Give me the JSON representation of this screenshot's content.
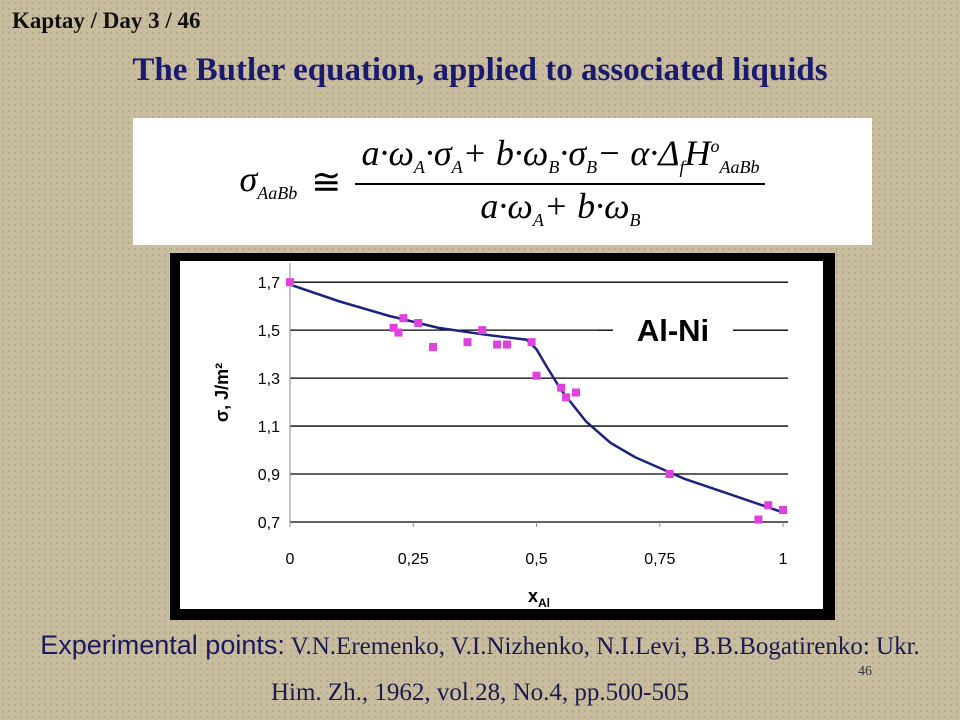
{
  "header": "Kaptay / Day 3 / 46",
  "title": "The Butler equation, applied to associated liquids",
  "formula": {
    "lhs": [
      {
        "text": "σ",
        "pos": "base"
      },
      {
        "text": "AaBb",
        "pos": "sub"
      }
    ],
    "relation": "≅",
    "numerator": [
      {
        "text": "a·ω",
        "pos": "base"
      },
      {
        "text": "A",
        "pos": "sub"
      },
      {
        "text": "·σ",
        "pos": "base"
      },
      {
        "text": "A",
        "pos": "sub"
      },
      {
        "text": "+ b·ω",
        "pos": "base"
      },
      {
        "text": "B",
        "pos": "sub"
      },
      {
        "text": "·σ",
        "pos": "base"
      },
      {
        "text": "B",
        "pos": "sub"
      },
      {
        "text": "− α·Δ",
        "pos": "base"
      },
      {
        "text": "f",
        "pos": "sub"
      },
      {
        "text": "H",
        "pos": "base"
      },
      {
        "text": "o",
        "pos": "sup"
      },
      {
        "text": "AaBb",
        "pos": "sub"
      }
    ],
    "denominator": [
      {
        "text": "a·ω",
        "pos": "base"
      },
      {
        "text": "A",
        "pos": "sub"
      },
      {
        "text": "+ b·ω",
        "pos": "base"
      },
      {
        "text": "B",
        "pos": "sub"
      }
    ]
  },
  "chart_data": {
    "type": "scatter",
    "ylabel": "σ, J/m²",
    "xlabel": "x",
    "xlabel_sub": "Al",
    "xlim": [
      0,
      1.01
    ],
    "ylim": [
      0.7,
      1.78
    ],
    "xticks": [
      0,
      {
        "value": 0.25,
        "label": "0,25"
      },
      {
        "value": 0.5,
        "label": "0,5"
      },
      {
        "value": 0.75,
        "label": "0,75"
      },
      1
    ],
    "yticks": [
      {
        "value": 0.7,
        "label": "0,7"
      },
      {
        "value": 0.9,
        "label": "0,9"
      },
      {
        "value": 1.1,
        "label": "1,1"
      },
      {
        "value": 1.3,
        "label": "1,3"
      },
      {
        "value": 1.5,
        "label": "1,5"
      },
      {
        "value": 1.7,
        "label": "1,7"
      }
    ],
    "grid": true,
    "legend": "top-right",
    "series": [
      {
        "name": "Al-Ni",
        "color": "#1a237e",
        "mode": "line",
        "x": [
          0,
          0.1,
          0.2,
          0.3,
          0.4,
          0.48,
          0.5,
          0.52,
          0.55,
          0.6,
          0.65,
          0.7,
          0.8,
          0.9,
          1.0
        ],
        "values": [
          1.69,
          1.62,
          1.56,
          1.51,
          1.48,
          1.46,
          1.42,
          1.35,
          1.25,
          1.12,
          1.03,
          0.97,
          0.88,
          0.81,
          0.74
        ]
      },
      {
        "color": "#e040e0",
        "mode": "points",
        "x": [
          0,
          0.21,
          0.22,
          0.23,
          0.26,
          0.29,
          0.36,
          0.39,
          0.42,
          0.44,
          0.49,
          0.5,
          0.55,
          0.56,
          0.58,
          0.77,
          0.95,
          0.97,
          1.0
        ],
        "values": [
          1.7,
          1.51,
          1.49,
          1.55,
          1.53,
          1.43,
          1.45,
          1.5,
          1.44,
          1.44,
          1.45,
          1.31,
          1.26,
          1.22,
          1.24,
          0.9,
          0.71,
          0.77,
          0.75
        ]
      }
    ]
  },
  "citation": {
    "lead": "Experimental points:",
    "text": "V.N.Eremenko, V.I.Nizhenko, N.I.Levi, B.B.Bogatirenko: Ukr. Him. Zh., 1962, vol.28, No.4, pp.500-505"
  },
  "page_number": "46"
}
